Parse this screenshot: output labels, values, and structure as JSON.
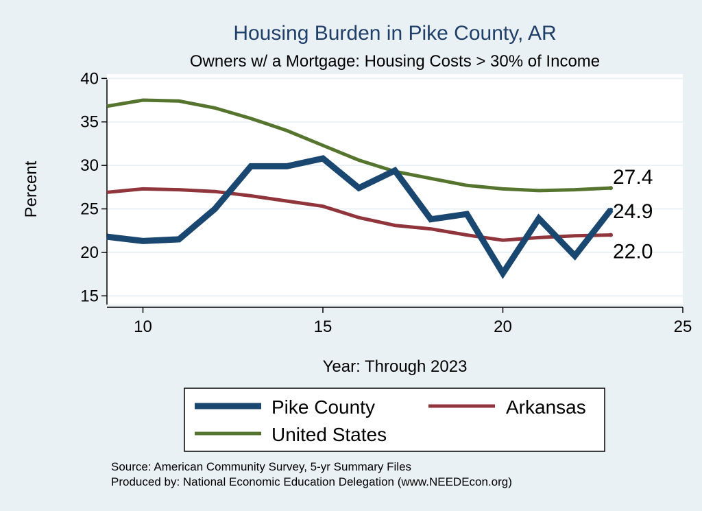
{
  "chart_data": {
    "type": "line",
    "title": "Housing Burden in Pike County, AR",
    "subtitle": "Owners w/ a Mortgage: Housing Costs > 30% of Income",
    "xlabel": "Year: Through 2023",
    "ylabel": "Percent",
    "xlim": [
      9,
      25
    ],
    "ylim": [
      14,
      40.5
    ],
    "xticks": [
      10,
      15,
      20,
      25
    ],
    "yticks": [
      15,
      20,
      25,
      30,
      35,
      40
    ],
    "grid": true,
    "legend_position": "bottom",
    "x": [
      9,
      10,
      11,
      12,
      13,
      14,
      15,
      16,
      17,
      18,
      19,
      20,
      21,
      22,
      23
    ],
    "series": [
      {
        "name": "Pike County",
        "color": "#1a476f",
        "values": [
          21.8,
          21.3,
          21.5,
          25.0,
          29.9,
          29.9,
          30.8,
          27.4,
          29.4,
          23.8,
          24.4,
          17.6,
          23.9,
          19.6,
          24.9
        ],
        "end_label": "24.9"
      },
      {
        "name": "Arkansas",
        "color": "#90353b",
        "values": [
          26.9,
          27.3,
          27.2,
          27.0,
          26.5,
          25.9,
          25.3,
          24.0,
          23.1,
          22.7,
          22.0,
          21.4,
          21.7,
          21.9,
          22.0
        ],
        "end_label": "22.0"
      },
      {
        "name": "United States",
        "color": "#55752f",
        "values": [
          36.8,
          37.5,
          37.4,
          36.6,
          35.4,
          34.0,
          32.3,
          30.6,
          29.3,
          28.5,
          27.7,
          27.3,
          27.1,
          27.2,
          27.4
        ],
        "end_label": "27.4"
      }
    ]
  },
  "legend": {
    "items": [
      "Pike County",
      "Arkansas",
      "United States"
    ]
  },
  "notes": {
    "source": "Source: American Community Survey, 5-yr Summary Files",
    "produced_by": "Produced by: National Economic Education Delegation (www.NEEDEcon.org)"
  }
}
